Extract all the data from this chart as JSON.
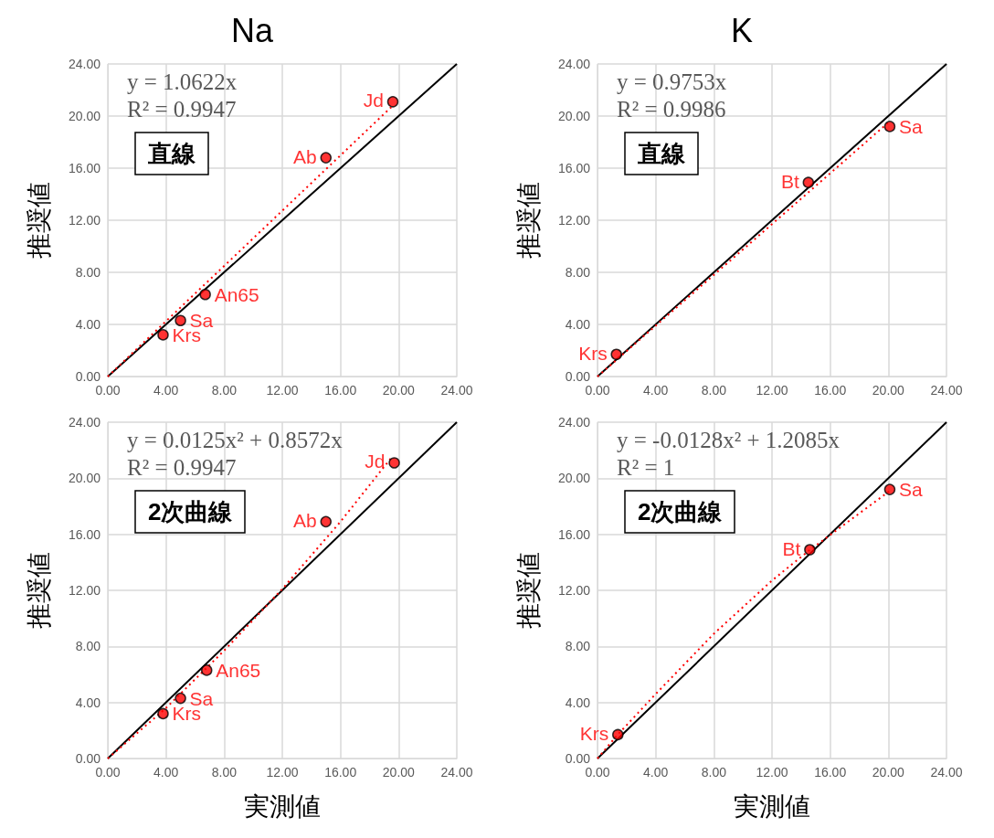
{
  "chart_data": [
    {
      "type": "scatter",
      "title": "Na",
      "ylabel": "推奨値",
      "xlim": [
        0,
        24
      ],
      "ylim": [
        0,
        24
      ],
      "xticks": [
        {
          "value": 0,
          "label": "0.00"
        },
        {
          "value": 4,
          "label": "4.00"
        },
        {
          "value": 8,
          "label": "8.00"
        },
        {
          "value": 12,
          "label": "12.00"
        },
        {
          "value": 16,
          "label": "16.00"
        },
        {
          "value": 20,
          "label": "20.00"
        },
        {
          "value": 24,
          "label": "24.00"
        }
      ],
      "yticks": [
        {
          "value": 0,
          "label": "0.00"
        },
        {
          "value": 4,
          "label": "4.00"
        },
        {
          "value": 8,
          "label": "8.00"
        },
        {
          "value": 12,
          "label": "12.00"
        },
        {
          "value": 16,
          "label": "16.00"
        },
        {
          "value": 20,
          "label": "20.00"
        },
        {
          "value": 24,
          "label": "24.00"
        }
      ],
      "grid": true,
      "marker": "circle",
      "series": [
        {
          "type": "line",
          "marker": "none",
          "color": "#000000",
          "line_style": "solid",
          "x": [
            0,
            24
          ],
          "values": [
            0,
            24
          ]
        },
        {
          "type": "line",
          "marker": "none",
          "color": "#ff0000",
          "line_style": "dotted",
          "x": [
            0,
            19.6
          ],
          "values": [
            0,
            20.8
          ]
        },
        {
          "color": "#ff0000",
          "x": [
            3.8,
            5.0,
            6.7,
            15.0,
            19.6
          ],
          "values": [
            3.2,
            4.3,
            6.3,
            16.8,
            21.1
          ]
        }
      ],
      "annotations": [
        "y = 1.0622x",
        "R² = 0.9947",
        "直線",
        {
          "text": "Krs",
          "x": 3.8,
          "y": 3.2
        },
        {
          "text": "Sa",
          "x": 5.0,
          "y": 4.3
        },
        {
          "text": "An65",
          "x": 6.7,
          "y": 6.3
        },
        {
          "text": "Ab",
          "x": 15.0,
          "y": 16.8
        },
        {
          "text": "Jd",
          "x": 19.6,
          "y": 21.1
        }
      ]
    },
    {
      "type": "scatter",
      "title": "K",
      "ylabel": "推奨値",
      "xlim": [
        0,
        24
      ],
      "ylim": [
        0,
        24
      ],
      "xticks": [
        {
          "value": 0,
          "label": "0.00"
        },
        {
          "value": 4,
          "label": "4.00"
        },
        {
          "value": 8,
          "label": "8.00"
        },
        {
          "value": 12,
          "label": "12.00"
        },
        {
          "value": 16,
          "label": "16.00"
        },
        {
          "value": 20,
          "label": "20.00"
        },
        {
          "value": 24,
          "label": "24.00"
        }
      ],
      "yticks": [
        {
          "value": 0,
          "label": "0.00"
        },
        {
          "value": 4,
          "label": "4.00"
        },
        {
          "value": 8,
          "label": "8.00"
        },
        {
          "value": 12,
          "label": "12.00"
        },
        {
          "value": 16,
          "label": "16.00"
        },
        {
          "value": 20,
          "label": "20.00"
        },
        {
          "value": 24,
          "label": "24.00"
        }
      ],
      "grid": true,
      "marker": "circle",
      "series": [
        {
          "type": "line",
          "marker": "none",
          "color": "#000000",
          "line_style": "solid",
          "x": [
            0,
            24
          ],
          "values": [
            0,
            24
          ]
        },
        {
          "type": "line",
          "marker": "none",
          "color": "#ff0000",
          "line_style": "dotted",
          "x": [
            0,
            20.1
          ],
          "values": [
            0,
            19.6
          ]
        },
        {
          "color": "#ff0000",
          "x": [
            1.3,
            14.5,
            20.1
          ],
          "values": [
            1.7,
            14.9,
            19.2
          ]
        }
      ],
      "annotations": [
        "y = 0.9753x",
        "R² = 0.9986",
        "直線",
        {
          "text": "Krs",
          "x": 1.3,
          "y": 1.7
        },
        {
          "text": "Bt",
          "x": 14.5,
          "y": 14.9
        },
        {
          "text": "Sa",
          "x": 20.1,
          "y": 19.2
        }
      ]
    },
    {
      "type": "scatter",
      "xlabel": "実測値",
      "ylabel": "推奨値",
      "xlim": [
        0,
        24
      ],
      "ylim": [
        0,
        24
      ],
      "xticks": [
        {
          "value": 0,
          "label": "0.00"
        },
        {
          "value": 4,
          "label": "4.00"
        },
        {
          "value": 8,
          "label": "8.00"
        },
        {
          "value": 12,
          "label": "12.00"
        },
        {
          "value": 16,
          "label": "16.00"
        },
        {
          "value": 20,
          "label": "20.00"
        },
        {
          "value": 24,
          "label": "24.00"
        }
      ],
      "yticks": [
        {
          "value": 0,
          "label": "0.00"
        },
        {
          "value": 4,
          "label": "4.00"
        },
        {
          "value": 8,
          "label": "8.00"
        },
        {
          "value": 12,
          "label": "12.00"
        },
        {
          "value": 16,
          "label": "16.00"
        },
        {
          "value": 20,
          "label": "20.00"
        },
        {
          "value": 24,
          "label": "24.00"
        }
      ],
      "grid": true,
      "marker": "circle",
      "series": [
        {
          "type": "line",
          "marker": "none",
          "color": "#000000",
          "line_style": "solid",
          "x": [
            0,
            24
          ],
          "values": [
            0,
            24
          ]
        },
        {
          "type": "line",
          "marker": "none",
          "color": "#ff0000",
          "line_style": "dotted",
          "x": [
            0,
            4,
            8,
            12,
            16,
            19.6
          ],
          "values": [
            0,
            3.6,
            7.7,
            12.1,
            16.9,
            21.6
          ]
        },
        {
          "color": "#ff0000",
          "x": [
            3.8,
            5.0,
            6.8,
            15.0,
            19.7
          ],
          "values": [
            3.2,
            4.3,
            6.3,
            16.9,
            21.1
          ]
        }
      ],
      "annotations": [
        "y = 0.0125x² + 0.8572x",
        "R² = 0.9947",
        "2次曲線",
        {
          "text": "Krs",
          "x": 3.8,
          "y": 3.2
        },
        {
          "text": "Sa",
          "x": 5.0,
          "y": 4.3
        },
        {
          "text": "An65",
          "x": 6.8,
          "y": 6.3
        },
        {
          "text": "Ab",
          "x": 15.0,
          "y": 16.9
        },
        {
          "text": "Jd",
          "x": 19.7,
          "y": 21.1
        }
      ]
    },
    {
      "type": "scatter",
      "xlabel": "実測値",
      "ylabel": "推奨値",
      "xlim": [
        0,
        24
      ],
      "ylim": [
        0,
        24
      ],
      "xticks": [
        {
          "value": 0,
          "label": "0.00"
        },
        {
          "value": 4,
          "label": "4.00"
        },
        {
          "value": 8,
          "label": "8.00"
        },
        {
          "value": 12,
          "label": "12.00"
        },
        {
          "value": 16,
          "label": "16.00"
        },
        {
          "value": 20,
          "label": "20.00"
        },
        {
          "value": 24,
          "label": "24.00"
        }
      ],
      "yticks": [
        {
          "value": 0,
          "label": "0.00"
        },
        {
          "value": 4,
          "label": "4.00"
        },
        {
          "value": 8,
          "label": "8.00"
        },
        {
          "value": 12,
          "label": "12.00"
        },
        {
          "value": 16,
          "label": "16.00"
        },
        {
          "value": 20,
          "label": "20.00"
        },
        {
          "value": 24,
          "label": "24.00"
        }
      ],
      "grid": true,
      "marker": "circle",
      "series": [
        {
          "type": "line",
          "marker": "none",
          "color": "#000000",
          "line_style": "solid",
          "x": [
            0,
            24
          ],
          "values": [
            0,
            24
          ]
        },
        {
          "type": "line",
          "marker": "none",
          "color": "#ff0000",
          "line_style": "dotted",
          "x": [
            0,
            1.3,
            4,
            8,
            12,
            14.5,
            20.1
          ],
          "values": [
            0,
            1.6,
            4.6,
            8.9,
            12.7,
            14.8,
            19.1
          ]
        },
        {
          "color": "#ff0000",
          "x": [
            1.4,
            14.6,
            20.1
          ],
          "values": [
            1.7,
            14.9,
            19.2
          ]
        }
      ],
      "annotations": [
        "y = -0.0128x² + 1.2085x",
        "R² = 1",
        "2次曲線",
        {
          "text": "Krs",
          "x": 1.4,
          "y": 1.7
        },
        {
          "text": "Bt",
          "x": 14.6,
          "y": 14.9
        },
        {
          "text": "Sa",
          "x": 20.1,
          "y": 19.2
        }
      ]
    }
  ]
}
